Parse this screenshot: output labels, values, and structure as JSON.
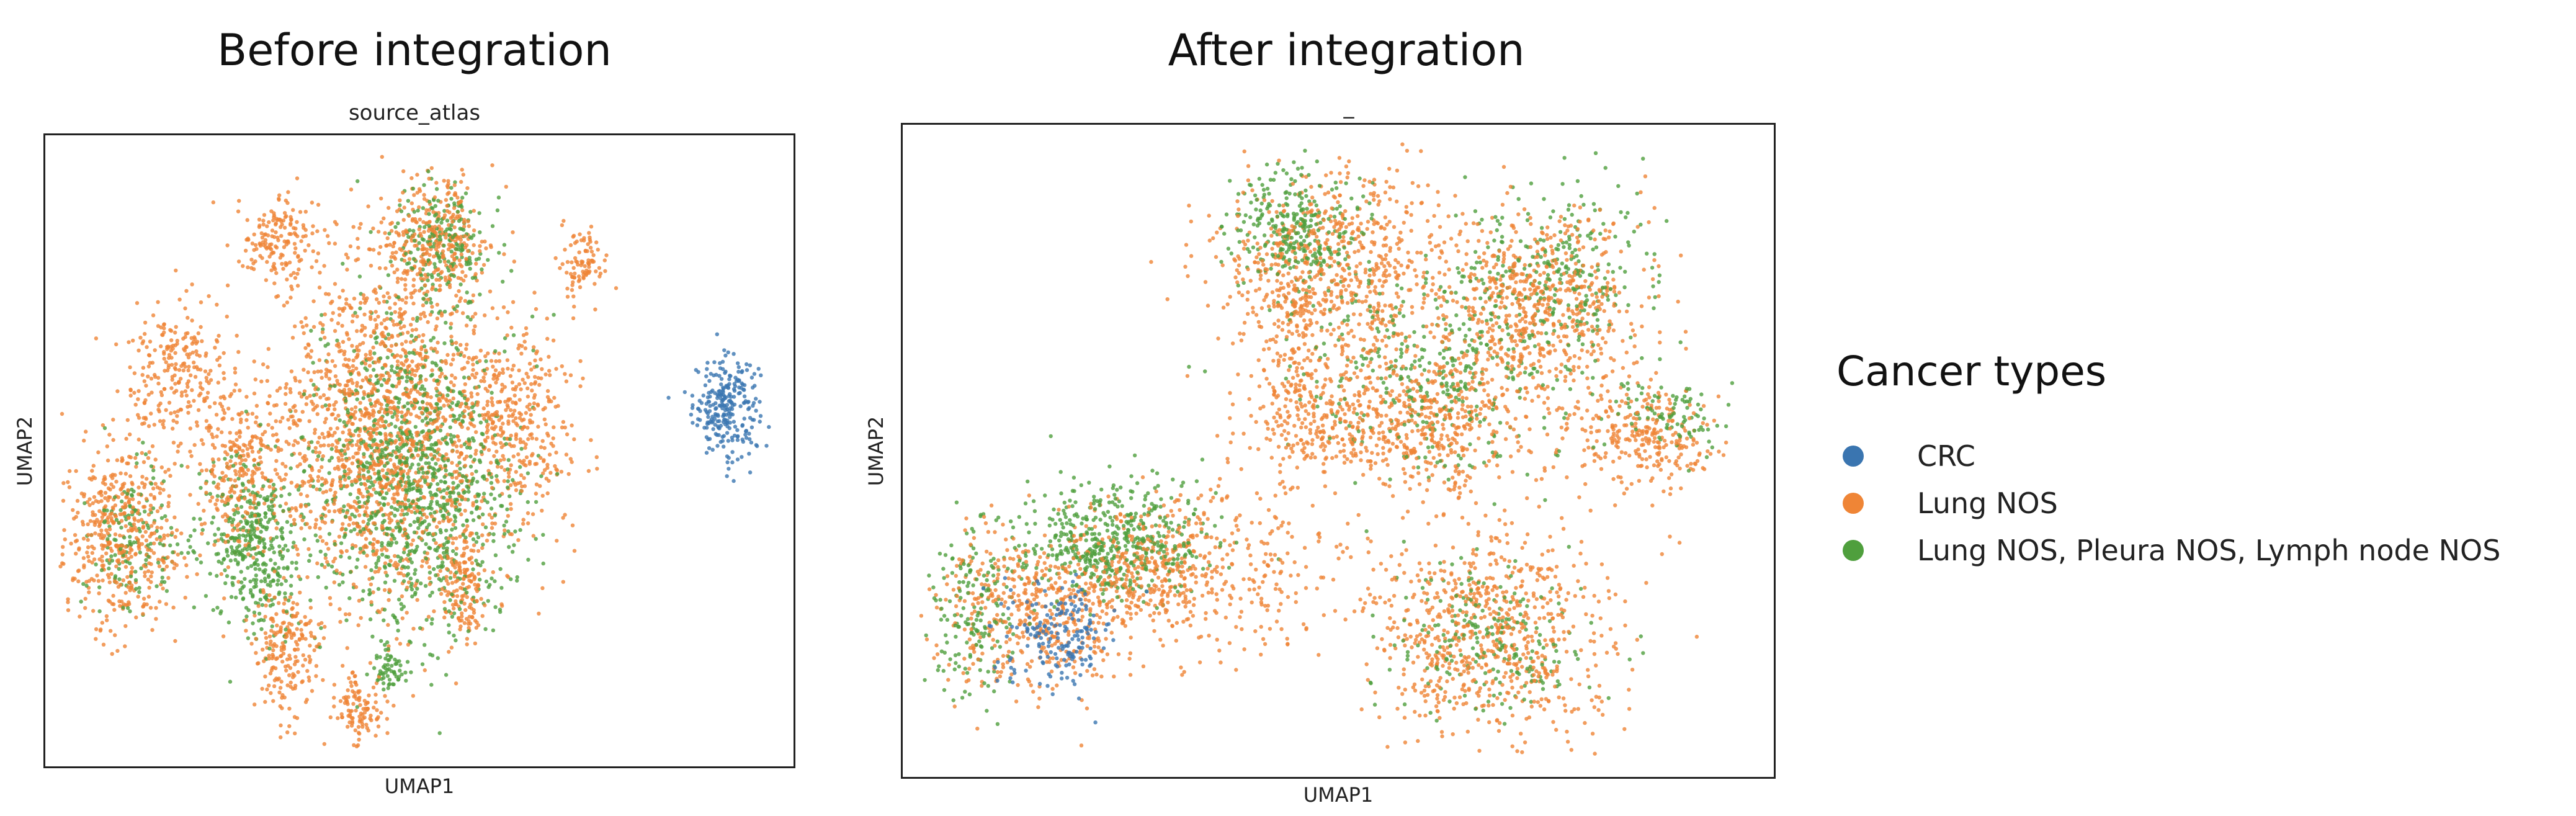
{
  "colors": {
    "CRC": "#3a75b0",
    "Lung NOS": "#ef8536",
    "Lung NOS, Pleura NOS, Lymph node NOS": "#4f9f3d"
  },
  "legend": {
    "title": "Cancer types",
    "items": [
      "CRC",
      "Lung NOS",
      "Lung NOS, Pleura NOS, Lymph node NOS"
    ]
  },
  "chart_data": [
    {
      "type": "scatter",
      "title": "Before integration",
      "subtitle": "source_atlas",
      "xlabel": "UMAP1",
      "ylabel": "UMAP2",
      "grid": false,
      "legend_position": "right",
      "series": [
        {
          "name": "CRC",
          "clusters": [
            {
              "cx": 0.91,
              "cy": 0.57,
              "rx": 0.04,
              "ry": 0.07,
              "n": 260
            }
          ]
        },
        {
          "name": "Lung NOS",
          "clusters": [
            {
              "cx": 0.45,
              "cy": 0.53,
              "rx": 0.13,
              "ry": 0.25,
              "n": 1500
            },
            {
              "cx": 0.1,
              "cy": 0.37,
              "rx": 0.08,
              "ry": 0.14,
              "n": 500
            },
            {
              "cx": 0.52,
              "cy": 0.83,
              "rx": 0.07,
              "ry": 0.09,
              "n": 320
            },
            {
              "cx": 0.31,
              "cy": 0.83,
              "rx": 0.05,
              "ry": 0.06,
              "n": 160
            },
            {
              "cx": 0.72,
              "cy": 0.8,
              "rx": 0.03,
              "ry": 0.04,
              "n": 90
            },
            {
              "cx": 0.32,
              "cy": 0.19,
              "rx": 0.04,
              "ry": 0.09,
              "n": 200
            },
            {
              "cx": 0.42,
              "cy": 0.09,
              "rx": 0.03,
              "ry": 0.05,
              "n": 110
            },
            {
              "cx": 0.56,
              "cy": 0.29,
              "rx": 0.03,
              "ry": 0.09,
              "n": 150
            },
            {
              "cx": 0.18,
              "cy": 0.62,
              "rx": 0.06,
              "ry": 0.1,
              "n": 250
            },
            {
              "cx": 0.26,
              "cy": 0.47,
              "rx": 0.05,
              "ry": 0.12,
              "n": 250
            },
            {
              "cx": 0.62,
              "cy": 0.55,
              "rx": 0.08,
              "ry": 0.14,
              "n": 400
            }
          ]
        },
        {
          "name": "Lung NOS, Pleura NOS, Lymph node NOS",
          "clusters": [
            {
              "cx": 0.49,
              "cy": 0.46,
              "rx": 0.12,
              "ry": 0.22,
              "n": 1100
            },
            {
              "cx": 0.28,
              "cy": 0.35,
              "rx": 0.06,
              "ry": 0.12,
              "n": 400
            },
            {
              "cx": 0.53,
              "cy": 0.83,
              "rx": 0.06,
              "ry": 0.08,
              "n": 200
            },
            {
              "cx": 0.12,
              "cy": 0.37,
              "rx": 0.05,
              "ry": 0.1,
              "n": 150
            },
            {
              "cx": 0.46,
              "cy": 0.15,
              "rx": 0.02,
              "ry": 0.04,
              "n": 60
            }
          ]
        }
      ]
    },
    {
      "type": "scatter",
      "title": "After integration",
      "subtitle": "_",
      "xlabel": "UMAP1",
      "ylabel": "UMAP2",
      "grid": false,
      "legend_position": "right",
      "series": [
        {
          "name": "CRC",
          "clusters": [
            {
              "cx": 0.18,
              "cy": 0.22,
              "rx": 0.06,
              "ry": 0.07,
              "n": 180
            }
          ]
        },
        {
          "name": "Lung NOS",
          "clusters": [
            {
              "cx": 0.49,
              "cy": 0.78,
              "rx": 0.12,
              "ry": 0.13,
              "n": 700
            },
            {
              "cx": 0.73,
              "cy": 0.72,
              "rx": 0.11,
              "ry": 0.14,
              "n": 650
            },
            {
              "cx": 0.58,
              "cy": 0.55,
              "rx": 0.14,
              "ry": 0.1,
              "n": 650
            },
            {
              "cx": 0.85,
              "cy": 0.52,
              "rx": 0.07,
              "ry": 0.07,
              "n": 260
            },
            {
              "cx": 0.67,
              "cy": 0.22,
              "rx": 0.13,
              "ry": 0.15,
              "n": 750
            },
            {
              "cx": 0.15,
              "cy": 0.25,
              "rx": 0.1,
              "ry": 0.11,
              "n": 500
            },
            {
              "cx": 0.28,
              "cy": 0.32,
              "rx": 0.09,
              "ry": 0.09,
              "n": 350
            },
            {
              "cx": 0.4,
              "cy": 0.32,
              "rx": 0.1,
              "ry": 0.14,
              "n": 200
            },
            {
              "cx": 0.45,
              "cy": 0.6,
              "rx": 0.04,
              "ry": 0.12,
              "n": 150
            }
          ]
        },
        {
          "name": "Lung NOS, Pleura NOS, Lymph node NOS",
          "clusters": [
            {
              "cx": 0.45,
              "cy": 0.84,
              "rx": 0.07,
              "ry": 0.09,
              "n": 300
            },
            {
              "cx": 0.62,
              "cy": 0.62,
              "rx": 0.15,
              "ry": 0.14,
              "n": 400
            },
            {
              "cx": 0.75,
              "cy": 0.78,
              "rx": 0.09,
              "ry": 0.1,
              "n": 250
            },
            {
              "cx": 0.24,
              "cy": 0.36,
              "rx": 0.1,
              "ry": 0.08,
              "n": 500
            },
            {
              "cx": 0.08,
              "cy": 0.25,
              "rx": 0.05,
              "ry": 0.12,
              "n": 160
            },
            {
              "cx": 0.68,
              "cy": 0.2,
              "rx": 0.1,
              "ry": 0.1,
              "n": 220
            },
            {
              "cx": 0.88,
              "cy": 0.56,
              "rx": 0.05,
              "ry": 0.05,
              "n": 90
            }
          ]
        }
      ]
    }
  ]
}
